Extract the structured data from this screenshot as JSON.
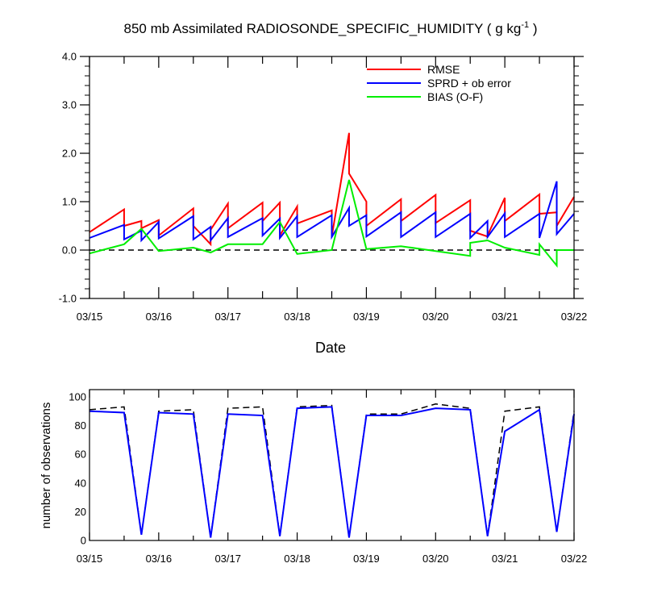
{
  "chart_data": [
    {
      "type": "line",
      "title": "850 mb Assimilated RADIOSONDE_SPECIFIC_HUMIDITY ( g kg",
      "title_unit_sup": "-1",
      "title_suffix": " )",
      "xlabel": "Date",
      "ylabel": "",
      "ylim": [
        -1.0,
        4.0
      ],
      "yticks": [
        -1.0,
        0.0,
        1.0,
        2.0,
        3.0,
        4.0
      ],
      "ytick_labels": [
        "-1.0",
        "0.0",
        "1.0",
        "2.0",
        "3.0",
        "4.0"
      ],
      "xlim": [
        0,
        7
      ],
      "xticks": [
        0,
        1,
        2,
        3,
        4,
        5,
        6,
        7
      ],
      "xtick_labels": [
        "03/15",
        "03/16",
        "03/17",
        "03/18",
        "03/19",
        "03/20",
        "03/21",
        "03/22"
      ],
      "legend": {
        "placement": "top-right",
        "entries": [
          "RMSE",
          "SPRD + ob error",
          "BIAS (O-F)"
        ]
      },
      "reference_line": {
        "y": 0.0,
        "style": "dashed",
        "color": "#000000"
      },
      "series": [
        {
          "name": "RMSE",
          "color": "#ff0000",
          "x": [
            0.0,
            0.5,
            0.5,
            0.75,
            0.75,
            1.0,
            1.0,
            1.5,
            1.5,
            1.75,
            1.75,
            2.0,
            2.0,
            2.5,
            2.5,
            2.75,
            2.75,
            3.0,
            3.0,
            3.5,
            3.5,
            3.75,
            3.75,
            4.0,
            4.0,
            4.5,
            4.5,
            5.0,
            5.0,
            5.5,
            5.5,
            5.75,
            5.75,
            6.0,
            6.0,
            6.5,
            6.5,
            6.75,
            6.75,
            7.0
          ],
          "y": [
            0.37,
            0.84,
            0.5,
            0.6,
            0.45,
            0.62,
            0.3,
            0.86,
            0.5,
            0.12,
            0.42,
            0.96,
            0.45,
            0.98,
            0.6,
            0.98,
            0.3,
            0.9,
            0.55,
            0.82,
            0.28,
            2.42,
            1.58,
            1.0,
            0.5,
            1.05,
            0.6,
            1.14,
            0.56,
            1.03,
            0.4,
            0.28,
            0.3,
            1.08,
            0.6,
            1.15,
            0.75,
            0.78,
            0.5,
            1.1
          ]
        },
        {
          "name": "SPRD + ob error",
          "color": "#0000ff",
          "x": [
            0.0,
            0.5,
            0.5,
            0.75,
            0.75,
            1.0,
            1.0,
            1.5,
            1.5,
            1.75,
            1.75,
            2.0,
            2.0,
            2.5,
            2.5,
            2.75,
            2.75,
            3.0,
            3.0,
            3.5,
            3.5,
            3.75,
            3.75,
            4.0,
            4.0,
            4.5,
            4.5,
            5.0,
            5.0,
            5.5,
            5.5,
            5.75,
            5.75,
            6.0,
            6.0,
            6.5,
            6.5,
            6.75,
            6.75,
            7.0
          ],
          "y": [
            0.25,
            0.52,
            0.22,
            0.4,
            0.2,
            0.58,
            0.24,
            0.7,
            0.22,
            0.48,
            0.2,
            0.66,
            0.27,
            0.66,
            0.3,
            0.65,
            0.25,
            0.7,
            0.27,
            0.72,
            0.27,
            0.87,
            0.5,
            0.72,
            0.28,
            0.78,
            0.27,
            0.78,
            0.27,
            0.75,
            0.25,
            0.6,
            0.27,
            0.76,
            0.27,
            0.75,
            0.25,
            1.42,
            0.33,
            0.75
          ]
        },
        {
          "name": "BIAS (O-F)",
          "color": "#00ee00",
          "x": [
            0.0,
            0.5,
            0.75,
            1.0,
            1.5,
            1.75,
            2.0,
            2.5,
            2.75,
            3.0,
            3.5,
            3.75,
            4.0,
            4.5,
            5.0,
            5.5,
            5.5,
            5.75,
            6.0,
            6.5,
            6.5,
            6.75,
            6.75,
            7.0
          ],
          "y": [
            -0.07,
            0.12,
            0.44,
            -0.02,
            0.05,
            -0.05,
            0.12,
            0.12,
            0.58,
            -0.08,
            0.0,
            1.45,
            0.02,
            0.08,
            -0.02,
            -0.12,
            0.15,
            0.2,
            0.05,
            -0.1,
            0.12,
            -0.32,
            0.0,
            0.0
          ]
        }
      ]
    },
    {
      "type": "line",
      "title": "",
      "xlabel": "",
      "ylabel": "number of observations",
      "ylim": [
        0,
        105
      ],
      "yticks": [
        0,
        20,
        40,
        60,
        80,
        100
      ],
      "ytick_labels": [
        "0",
        "20",
        "40",
        "60",
        "80",
        "100"
      ],
      "xlim": [
        0,
        7
      ],
      "xticks": [
        0,
        1,
        2,
        3,
        4,
        5,
        6,
        7
      ],
      "xtick_labels": [
        "03/15",
        "03/16",
        "03/17",
        "03/18",
        "03/19",
        "03/20",
        "03/21",
        "03/22"
      ],
      "series": [
        {
          "color": "#000000",
          "style": "dashed",
          "x": [
            0.0,
            0.5,
            0.75,
            1.0,
            1.5,
            1.75,
            2.0,
            2.5,
            2.75,
            3.0,
            3.5,
            3.75,
            4.0,
            4.5,
            5.0,
            5.5,
            5.75,
            6.0,
            6.5,
            6.75,
            7.0
          ],
          "y": [
            91,
            93,
            4,
            90,
            91,
            2,
            92,
            93,
            3,
            93,
            94,
            2,
            88,
            88,
            95,
            92,
            3,
            90,
            93,
            6,
            90
          ]
        },
        {
          "color": "#0000ff",
          "style": "solid",
          "x": [
            0.0,
            0.5,
            0.75,
            1.0,
            1.5,
            1.75,
            2.0,
            2.5,
            2.75,
            3.0,
            3.5,
            3.75,
            4.0,
            4.5,
            5.0,
            5.5,
            5.75,
            6.0,
            6.5,
            6.75,
            7.0
          ],
          "y": [
            90,
            89,
            4,
            89,
            88,
            2,
            88,
            87,
            3,
            92,
            93,
            2,
            87,
            87,
            92,
            91,
            3,
            76,
            91,
            6,
            88
          ]
        }
      ]
    }
  ]
}
